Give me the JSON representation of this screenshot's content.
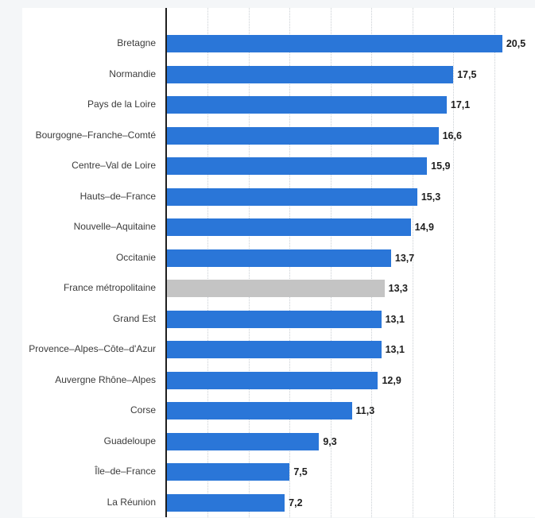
{
  "chart_data": {
    "type": "bar",
    "orientation": "horizontal",
    "title": "",
    "xlabel": "",
    "ylabel": "",
    "xlim": [
      0,
      22.5
    ],
    "gridline_step": 2.5,
    "grid": true,
    "categories": [
      "Bretagne",
      "Normandie",
      "Pays de la Loire",
      "Bourgogne–Franche–Comté",
      "Centre–Val de Loire",
      "Hauts–de–France",
      "Nouvelle–Aquitaine",
      "Occitanie",
      "France métropolitaine",
      "Grand Est",
      "Provence–Alpes–Côte–d'Azur",
      "Auvergne Rhône–Alpes",
      "Corse",
      "Guadeloupe",
      "Île–de–France",
      "La Réunion"
    ],
    "values": [
      20.5,
      17.5,
      17.1,
      16.6,
      15.9,
      15.3,
      14.9,
      13.7,
      13.3,
      13.1,
      13.1,
      12.9,
      11.3,
      9.3,
      7.5,
      7.2
    ],
    "value_labels": [
      "20,5",
      "17,5",
      "17,1",
      "16,6",
      "15,9",
      "15,3",
      "14,9",
      "13,7",
      "13,3",
      "13,1",
      "13,1",
      "12,9",
      "11,3",
      "9,3",
      "7,5",
      "7,2"
    ],
    "highlight_index": 8,
    "colors": {
      "bar": "#2a76d8",
      "highlight_bar": "#c4c4c4",
      "axis": "#1f1f1f",
      "gridline": "#c9ced3",
      "value_text": "#1e1e1e",
      "category_text": "#3b3b3b",
      "background": "#ffffff",
      "page_background": "#f4f6f8"
    }
  }
}
